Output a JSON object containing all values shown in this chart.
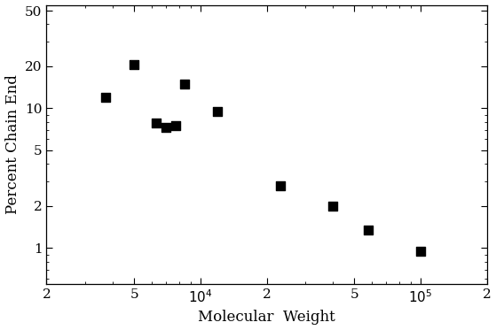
{
  "x_data": [
    3700,
    5000,
    6300,
    7000,
    7700,
    8500,
    12000,
    23000,
    40000,
    58000,
    100000
  ],
  "y_data": [
    12,
    20.5,
    7.8,
    7.3,
    7.5,
    15,
    9.5,
    2.8,
    2.0,
    1.35,
    0.95
  ],
  "xlabel": "Molecular  Weight",
  "ylabel": "Percent Chain End",
  "xlim": [
    2000,
    200000
  ],
  "ylim": [
    0.55,
    55
  ],
  "marker_color": "#000000",
  "marker_size": 55,
  "background_color": "#ffffff",
  "font_size_labels": 12,
  "font_size_ticks": 11
}
